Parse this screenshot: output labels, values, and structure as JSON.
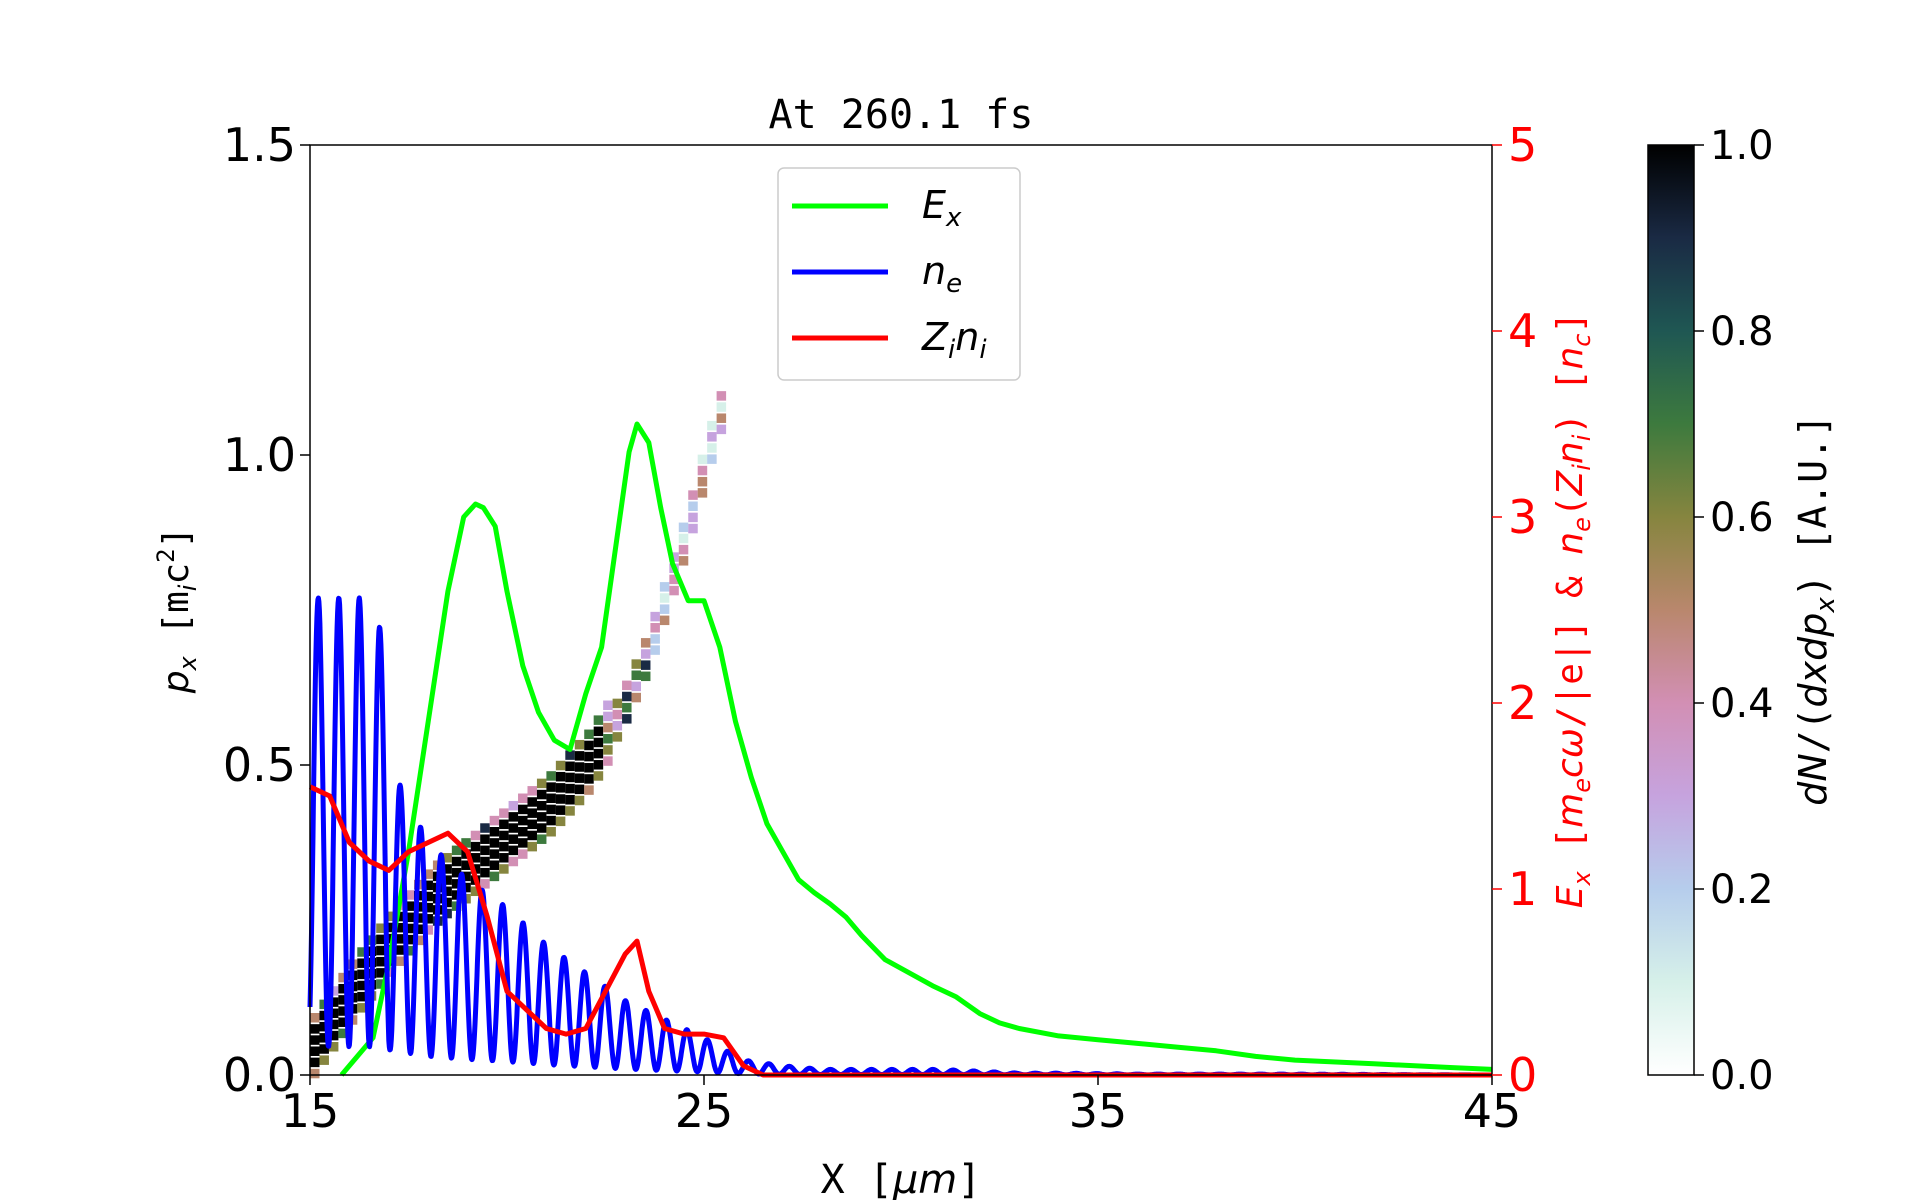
{
  "chart_data": {
    "type": "line",
    "title": "At 260.1 fs",
    "xlabel": "X [μm]",
    "xlim": [
      15,
      45
    ],
    "x_ticks": [
      "15",
      "25",
      "35",
      "45"
    ],
    "x_tick_values": [
      15,
      25,
      35,
      45
    ],
    "ylabel_left": "p_x  [m_i c^2]",
    "ylim_left": [
      0,
      1.5
    ],
    "y_ticks_left": [
      "0.0",
      "0.5",
      "1.0",
      "1.5"
    ],
    "y_tick_values_left": [
      0,
      0.5,
      1.0,
      1.5
    ],
    "ylabel_right": "E_x [m_e cω/|e|] & n_e(Z_i n_i) [n_c]",
    "ylim_right": [
      0,
      5
    ],
    "y_ticks_right": [
      "0",
      "1",
      "2",
      "3",
      "4",
      "5"
    ],
    "y_tick_values_right": [
      0,
      1,
      2,
      3,
      4,
      5
    ],
    "colorbar": {
      "label": "dN/(dxdp_x)  [A.U.]",
      "range": [
        0,
        1
      ],
      "ticks": [
        "0.0",
        "0.2",
        "0.4",
        "0.6",
        "0.8",
        "1.0"
      ],
      "tick_values": [
        0,
        0.2,
        0.4,
        0.6,
        0.8,
        1.0
      ]
    },
    "legend_position": "upper-center",
    "series": [
      {
        "name": "E_x",
        "color": "#00ff00",
        "axis": "right",
        "x": [
          15.8,
          16.2,
          16.6,
          17.0,
          17.5,
          18.0,
          18.5,
          18.9,
          19.2,
          19.4,
          19.7,
          20.0,
          20.4,
          20.8,
          21.2,
          21.6,
          22.0,
          22.4,
          22.8,
          23.1,
          23.3,
          23.6,
          23.9,
          24.2,
          24.6,
          25.0,
          25.4,
          25.8,
          26.2,
          26.6,
          27.0,
          27.4,
          27.8,
          28.2,
          28.6,
          29.0,
          29.6,
          30.2,
          30.8,
          31.4,
          32.0,
          32.5,
          33.0,
          34.0,
          35.0,
          36.0,
          37.0,
          38.0,
          39.0,
          40.0,
          42.0,
          44.0,
          45.0
        ],
        "y": [
          0.0,
          0.1,
          0.2,
          0.6,
          1.2,
          1.9,
          2.6,
          3.0,
          3.07,
          3.05,
          2.95,
          2.6,
          2.2,
          1.95,
          1.8,
          1.75,
          2.05,
          2.3,
          2.9,
          3.35,
          3.5,
          3.4,
          3.05,
          2.75,
          2.55,
          2.55,
          2.3,
          1.9,
          1.6,
          1.35,
          1.2,
          1.05,
          0.98,
          0.92,
          0.85,
          0.75,
          0.62,
          0.55,
          0.48,
          0.42,
          0.33,
          0.28,
          0.25,
          0.21,
          0.19,
          0.17,
          0.15,
          0.13,
          0.1,
          0.08,
          0.06,
          0.04,
          0.03
        ]
      },
      {
        "name": "n_e",
        "color": "#0000ff",
        "axis": "right",
        "x": [
          15.0,
          16.5,
          18.0,
          19.0,
          20.0,
          21.0,
          22.0,
          23.0,
          24.0,
          25.0,
          26.0,
          27.0,
          28.0,
          29.0,
          30.0,
          31.0,
          32.0,
          33.0,
          34.0,
          36.0,
          40.0,
          45.0
        ],
        "y": [
          1.9,
          1.9,
          1.25,
          1.05,
          0.9,
          0.7,
          0.55,
          0.4,
          0.3,
          0.2,
          0.08,
          0.05,
          0.03,
          0.03,
          0.03,
          0.03,
          0.02,
          0.01,
          0.01,
          0.005,
          0.005,
          0.0
        ]
      },
      {
        "name": "Z_i n_i",
        "color": "#ff0000",
        "axis": "right",
        "x": [
          15.0,
          15.5,
          16.0,
          16.5,
          17.0,
          17.5,
          18.0,
          18.5,
          19.0,
          19.5,
          20.0,
          20.5,
          21.0,
          21.5,
          22.0,
          22.5,
          23.0,
          23.3,
          23.6,
          24.0,
          24.5,
          25.0,
          25.5,
          26.0,
          26.5,
          30.0,
          45.0
        ],
        "y": [
          1.55,
          1.5,
          1.25,
          1.15,
          1.1,
          1.2,
          1.25,
          1.3,
          1.2,
          0.85,
          0.45,
          0.35,
          0.25,
          0.22,
          0.25,
          0.45,
          0.65,
          0.72,
          0.45,
          0.25,
          0.22,
          0.22,
          0.2,
          0.05,
          0.0,
          0.0,
          0.0
        ]
      }
    ],
    "phase_space": {
      "description_colormap": "cubehelix_r",
      "x": [
        15.0,
        16.0,
        17.0,
        18.0,
        19.0,
        20.0,
        21.0,
        22.0,
        22.8,
        23.5,
        24.0,
        24.5,
        25.0,
        25.5
      ],
      "p": [
        0.06,
        0.15,
        0.23,
        0.3,
        0.35,
        0.4,
        0.45,
        0.52,
        0.6,
        0.7,
        0.8,
        0.9,
        1.02,
        1.12
      ]
    }
  }
}
